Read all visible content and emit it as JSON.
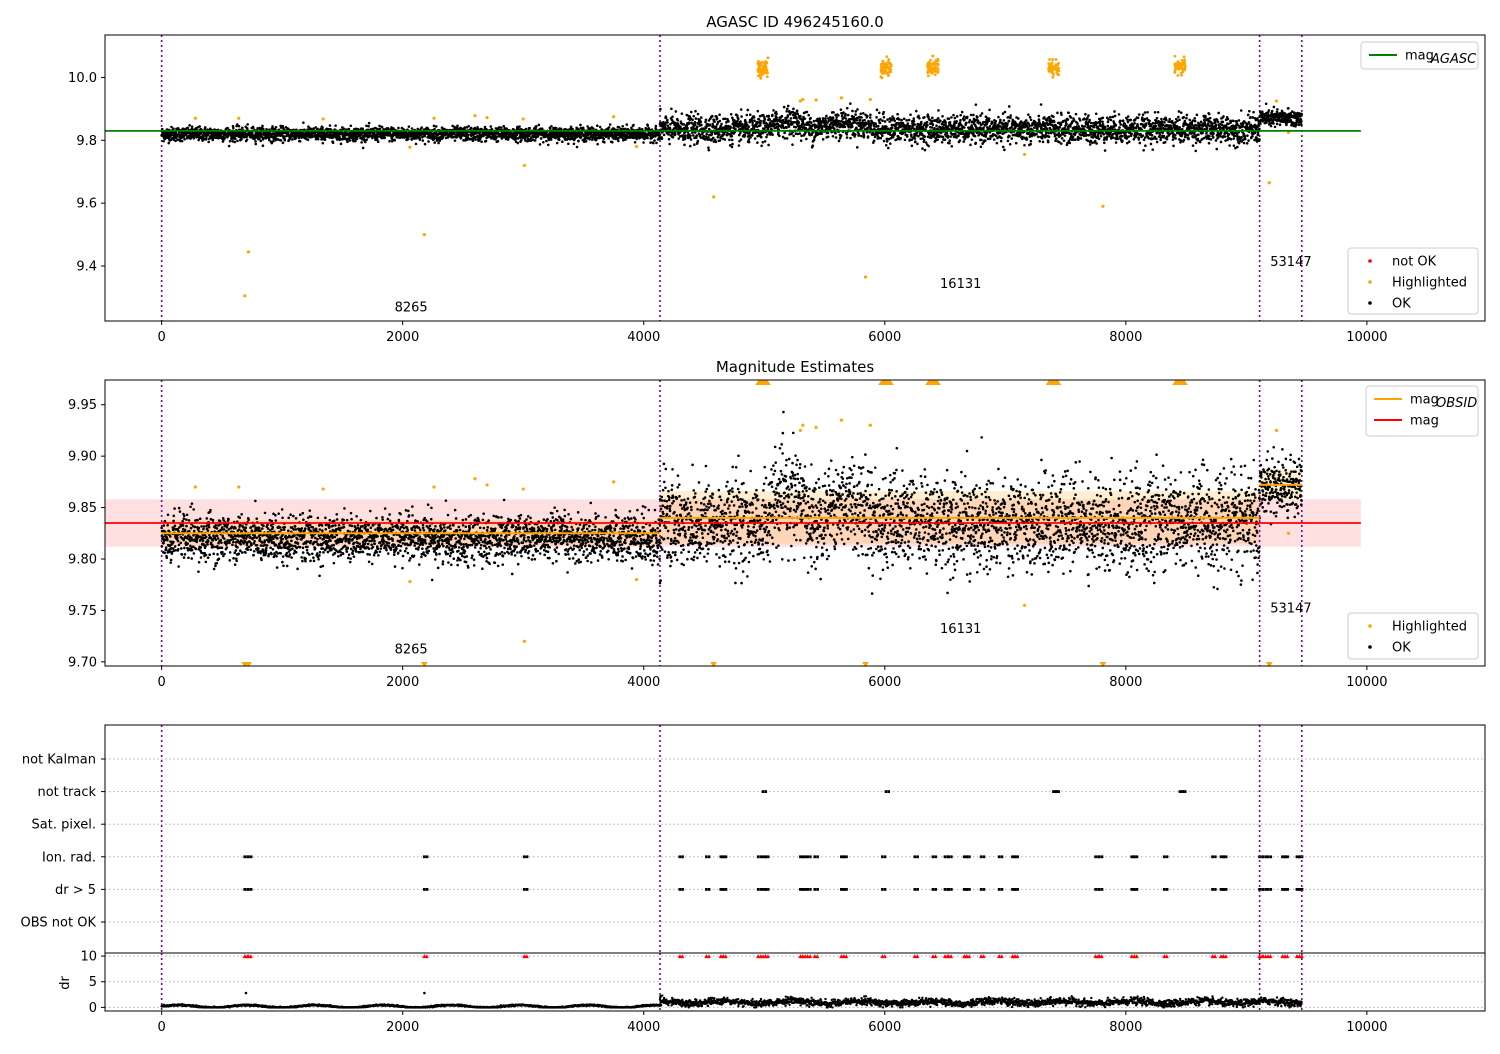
{
  "chart_data": [
    {
      "type": "scatter",
      "title": "AGASC ID 496245160.0",
      "xlabel": "",
      "ylabel": "",
      "xlim": [
        -470,
        10980
      ],
      "ylim": [
        9.225,
        10.135
      ],
      "xticks": [
        "0",
        "2000",
        "4000",
        "6000",
        "8000",
        "10000"
      ],
      "yticks": [
        "9.4",
        "9.6",
        "9.8",
        "10.0"
      ],
      "reference_lines": [
        {
          "name": "mag_AGASC",
          "label_base": "mag",
          "label_sub": "AGASC",
          "y": 9.83,
          "x": [
            -470,
            9950
          ],
          "color": "#008000"
        }
      ],
      "obsid_boundaries": [
        0,
        4135,
        9110,
        9460
      ],
      "obsid_labels": [
        {
          "text": "8265",
          "x": 2070,
          "y": 9.255
        },
        {
          "text": "16131",
          "x": 6630,
          "y": 9.33
        },
        {
          "text": "53147",
          "x": 9370,
          "y": 9.4
        }
      ],
      "segments": [
        {
          "x": [
            0,
            4135
          ],
          "mean": 9.82,
          "spread": 0.011
        },
        {
          "x": [
            4135,
            9110
          ],
          "mean": 9.835,
          "spread": 0.022
        },
        {
          "x": [
            9110,
            9460
          ],
          "mean": 9.87,
          "spread": 0.014
        }
      ],
      "bumps": [
        [
          5000,
          5400,
          0.025
        ],
        [
          5400,
          5950,
          0.02
        ]
      ],
      "series": [
        {
          "name": "not OK",
          "color": "#ff0000",
          "points": []
        },
        {
          "name": "Highlighted",
          "color": "#ffa500",
          "points": [
            [
              690,
              9.305
            ],
            [
              720,
              9.445
            ],
            [
              2180,
              9.5
            ],
            [
              3010,
              9.72
            ],
            [
              4580,
              9.62
            ],
            [
              5840,
              9.365
            ],
            [
              7160,
              9.755
            ],
            [
              7810,
              9.59
            ],
            [
              9190,
              9.665
            ],
            [
              2060,
              9.778
            ],
            [
              3940,
              9.78
            ],
            [
              280,
              9.87
            ],
            [
              640,
              9.87
            ],
            [
              1340,
              9.868
            ],
            [
              2260,
              9.87
            ],
            [
              2600,
              9.878
            ],
            [
              2700,
              9.872
            ],
            [
              3000,
              9.868
            ],
            [
              3750,
              9.875
            ],
            [
              5300,
              9.925
            ],
            [
              5320,
              9.93
            ],
            [
              5430,
              9.928
            ],
            [
              5640,
              9.935
            ],
            [
              5880,
              9.93
            ],
            [
              9250,
              9.925
            ],
            [
              9350,
              9.825
            ]
          ]
        },
        {
          "name": "OK",
          "color": "#000000",
          "points": []
        }
      ],
      "highlight_clusters": [
        [
          4990,
          10.03
        ],
        [
          6010,
          10.03
        ],
        [
          6400,
          10.03
        ],
        [
          7400,
          10.03
        ],
        [
          8450,
          10.035
        ]
      ],
      "legends": [
        {
          "position": "upper-right",
          "entries": [
            {
              "label": "mag",
              "sub": "AGASC",
              "color": "#008000",
              "kind": "line"
            }
          ]
        },
        {
          "position": "lower-right",
          "entries": [
            {
              "label": "not OK",
              "color": "#ff0000",
              "kind": "dot"
            },
            {
              "label": "Highlighted",
              "color": "#ffa500",
              "kind": "dot"
            },
            {
              "label": "OK",
              "color": "#000000",
              "kind": "dot"
            }
          ]
        }
      ]
    },
    {
      "type": "scatter",
      "title": "Magnitude Estimates",
      "xlabel": "",
      "ylabel": "",
      "xlim": [
        -470,
        10980
      ],
      "ylim": [
        9.696,
        9.974
      ],
      "xticks": [
        "0",
        "2000",
        "4000",
        "6000",
        "8000",
        "10000"
      ],
      "yticks": [
        "9.70",
        "9.75",
        "9.80",
        "9.85",
        "9.90",
        "9.95"
      ],
      "mag": {
        "label": "mag",
        "value": 9.835,
        "band": [
          9.812,
          9.858
        ],
        "x": [
          -470,
          9950
        ],
        "color": "#ff0000"
      },
      "mag_obsid": {
        "label_base": "mag",
        "label_sub": "OBSID",
        "color": "#ffa500",
        "segments": [
          {
            "x": [
              0,
              4135
            ],
            "value": 9.825,
            "band": [
              9.813,
              9.838
            ]
          },
          {
            "x": [
              4135,
              9110
            ],
            "value": 9.84,
            "band": [
              9.815,
              9.866
            ]
          },
          {
            "x": [
              9110,
              9460
            ],
            "value": 9.872,
            "band": [
              9.858,
              9.887
            ]
          }
        ]
      },
      "obsid_boundaries": [
        0,
        4135,
        9110,
        9460
      ],
      "obsid_labels": [
        {
          "text": "8265",
          "x": 2070,
          "y": 9.708
        },
        {
          "text": "16131",
          "x": 6630,
          "y": 9.728
        },
        {
          "text": "53147",
          "x": 9370,
          "y": 9.748
        }
      ],
      "offscale_low_x": [
        690,
        720,
        2180,
        4580,
        5840,
        7810,
        9190
      ],
      "offscale_high_x": [
        4990,
        6010,
        6400,
        7400,
        8450
      ],
      "legends": [
        {
          "position": "upper-right",
          "entries": [
            {
              "label": "mag",
              "sub": "OBSID",
              "color": "#ffa500",
              "kind": "line"
            },
            {
              "label": "mag",
              "color": "#ff0000",
              "kind": "line"
            }
          ]
        },
        {
          "position": "lower-right",
          "entries": [
            {
              "label": "Highlighted",
              "color": "#ffa500",
              "kind": "dot"
            },
            {
              "label": "OK",
              "color": "#000000",
              "kind": "dot"
            }
          ]
        }
      ]
    },
    {
      "type": "scatter",
      "title": "",
      "xlabel": "",
      "ylabel": "",
      "xlim": [
        -470,
        10980
      ],
      "xticks": [
        "0",
        "2000",
        "4000",
        "6000",
        "8000",
        "10000"
      ],
      "flag_rows": [
        "not Kalman",
        "not track",
        "Sat. pixel.",
        "Ion. rad.",
        "dr > 5",
        "OBS not OK"
      ],
      "flags": {
        "not Kalman": [],
        "not track": [
          4990,
          6010,
          7400,
          7420,
          8450,
          8470
        ],
        "Sat. pixel.": [],
        "Ion. rad.": [
          690,
          720,
          2180,
          3010,
          4300,
          4520,
          4640,
          4660,
          4950,
          4990,
          5010,
          5300,
          5320,
          5360,
          5420,
          5640,
          5660,
          5980,
          6250,
          6400,
          6500,
          6530,
          6660,
          6680,
          6800,
          6950,
          7060,
          7080,
          7750,
          7780,
          8050,
          8070,
          8320,
          8720,
          8790,
          8810,
          9110,
          9140,
          9180,
          9300,
          9320,
          9420,
          9440
        ],
        "dr > 5": [
          690,
          720,
          2180,
          3010,
          4300,
          4520,
          4640,
          4660,
          4950,
          4990,
          5010,
          5300,
          5320,
          5360,
          5420,
          5640,
          5660,
          5980,
          6250,
          6400,
          6500,
          6530,
          6660,
          6680,
          6800,
          6950,
          7060,
          7080,
          7750,
          7780,
          8050,
          8070,
          8320,
          8720,
          8790,
          8810,
          9110,
          9140,
          9180,
          9300,
          9320,
          9420,
          9440
        ],
        "OBS not OK": []
      },
      "obsid_boundaries": [
        0,
        4135,
        9110,
        9460
      ]
    },
    {
      "type": "scatter",
      "title": "",
      "xlabel": "",
      "ylabel": "dr",
      "xlim": [
        -470,
        10980
      ],
      "ylim": [
        -0.7,
        10.6
      ],
      "yticks": [
        "0",
        "5",
        "10"
      ],
      "xticks": [
        "0",
        "2000",
        "4000",
        "6000",
        "8000",
        "10000"
      ],
      "dr_segments": [
        {
          "x": [
            0,
            4135
          ],
          "level": 0.2
        },
        {
          "x": [
            4135,
            9460
          ],
          "level": 1.0
        }
      ],
      "dr_spikes": [
        [
          700,
          2.8
        ],
        [
          2180,
          2.8
        ],
        [
          4140,
          2.2
        ]
      ],
      "large_dr_x": [
        690,
        720,
        2180,
        3010,
        4300,
        4520,
        4640,
        4660,
        4950,
        4990,
        5010,
        5300,
        5320,
        5360,
        5420,
        5640,
        5660,
        5980,
        6250,
        6400,
        6500,
        6530,
        6660,
        6680,
        6800,
        6950,
        7060,
        7080,
        7750,
        7780,
        8050,
        8070,
        8320,
        8720,
        8790,
        8810,
        9110,
        9140,
        9180,
        9300,
        9320,
        9420,
        9440
      ],
      "large_dr_marker_color": "#ff0000",
      "obsid_boundaries": [
        0,
        4135,
        9110,
        9460
      ]
    }
  ]
}
